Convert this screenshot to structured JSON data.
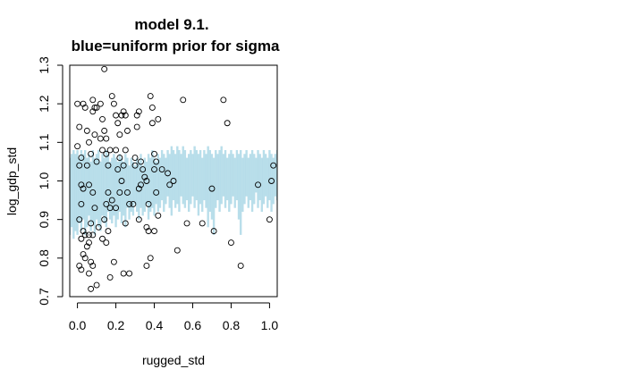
{
  "chart_data": {
    "type": "scatter",
    "title": "model 9.1.",
    "subtitle": "blue=uniform prior for sigma",
    "xlabel": "rugged_std",
    "ylabel": "log_gdp_std",
    "xlim": [
      -0.04,
      1.04
    ],
    "ylim": [
      0.7,
      1.3
    ],
    "xticks": [
      0.0,
      0.2,
      0.4,
      0.6,
      0.8,
      1.0
    ],
    "xtick_labels": [
      "0.0",
      "0.2",
      "0.4",
      "0.6",
      "0.8",
      "1.0"
    ],
    "yticks": [
      0.7,
      0.8,
      0.9,
      1.0,
      1.1,
      1.2,
      1.3
    ],
    "ytick_labels": [
      "0.7",
      "0.8",
      "0.9",
      "1.0",
      "1.1",
      "1.2",
      "1.3"
    ],
    "grid": false,
    "colors": {
      "trace": "#add8e6",
      "trace_light": "#d6ebf3",
      "points": "#000000"
    },
    "trace": {
      "description_free": true,
      "x": [
        -0.04,
        -0.03,
        -0.02,
        -0.01,
        0.0,
        0.01,
        0.02,
        0.03,
        0.04,
        0.05,
        0.06,
        0.07,
        0.08,
        0.09,
        0.1,
        0.11,
        0.12,
        0.13,
        0.14,
        0.15,
        0.16,
        0.17,
        0.18,
        0.19,
        0.2,
        0.21,
        0.22,
        0.23,
        0.24,
        0.25,
        0.26,
        0.27,
        0.28,
        0.29,
        0.3,
        0.31,
        0.32,
        0.33,
        0.34,
        0.35,
        0.36,
        0.37,
        0.38,
        0.39,
        0.4,
        0.41,
        0.42,
        0.43,
        0.44,
        0.45,
        0.46,
        0.47,
        0.48,
        0.49,
        0.5,
        0.51,
        0.52,
        0.53,
        0.54,
        0.55,
        0.56,
        0.57,
        0.58,
        0.59,
        0.6,
        0.61,
        0.62,
        0.63,
        0.64,
        0.65,
        0.66,
        0.67,
        0.68,
        0.69,
        0.7,
        0.71,
        0.72,
        0.73,
        0.74,
        0.75,
        0.76,
        0.77,
        0.78,
        0.79,
        0.8,
        0.81,
        0.82,
        0.83,
        0.84,
        0.85,
        0.86,
        0.87,
        0.88,
        0.89,
        0.9,
        0.91,
        0.92,
        0.93,
        0.94,
        0.95,
        0.96,
        0.97,
        0.98,
        0.99,
        1.0,
        1.01,
        1.02,
        1.03,
        1.04
      ],
      "upper": [
        1.06,
        1.07,
        1.08,
        1.07,
        1.08,
        1.06,
        1.08,
        1.07,
        1.08,
        1.06,
        1.07,
        1.05,
        1.08,
        1.06,
        1.07,
        1.08,
        1.05,
        1.07,
        1.06,
        1.08,
        1.07,
        1.05,
        1.06,
        1.07,
        1.06,
        1.05,
        1.07,
        1.06,
        1.05,
        1.07,
        1.06,
        1.04,
        1.06,
        1.05,
        1.04,
        1.06,
        1.05,
        1.07,
        1.04,
        1.06,
        1.05,
        1.07,
        1.06,
        1.08,
        1.06,
        1.05,
        1.07,
        1.06,
        1.08,
        1.07,
        1.06,
        1.08,
        1.07,
        1.09,
        1.08,
        1.07,
        1.09,
        1.08,
        1.07,
        1.09,
        1.08,
        1.06,
        1.07,
        1.08,
        1.07,
        1.09,
        1.08,
        1.07,
        1.08,
        1.06,
        1.08,
        1.07,
        1.09,
        1.08,
        1.07,
        1.06,
        1.08,
        1.07,
        1.08,
        1.09,
        1.07,
        1.08,
        1.06,
        1.07,
        1.08,
        1.07,
        1.06,
        1.08,
        1.07,
        1.08,
        1.06,
        1.07,
        1.08,
        1.06,
        1.07,
        1.08,
        1.07,
        1.06,
        1.08,
        1.07,
        1.06,
        1.08,
        1.07,
        1.06,
        1.08,
        1.07,
        1.06,
        1.07,
        1.08
      ],
      "lower": [
        0.86,
        0.88,
        0.85,
        0.87,
        0.86,
        0.89,
        0.87,
        0.9,
        0.86,
        0.88,
        0.91,
        0.87,
        0.89,
        0.86,
        0.9,
        0.88,
        0.87,
        0.91,
        0.89,
        0.88,
        0.92,
        0.9,
        0.89,
        0.91,
        0.88,
        0.9,
        0.92,
        0.89,
        0.91,
        0.88,
        0.93,
        0.9,
        0.92,
        0.91,
        0.94,
        0.92,
        0.9,
        0.93,
        0.91,
        0.92,
        0.94,
        0.9,
        0.92,
        0.93,
        0.91,
        0.94,
        0.92,
        0.93,
        0.95,
        0.92,
        0.94,
        0.96,
        0.93,
        0.91,
        0.95,
        0.93,
        0.94,
        0.92,
        0.96,
        0.94,
        0.93,
        0.95,
        0.92,
        0.94,
        0.96,
        0.93,
        0.95,
        0.91,
        0.94,
        0.92,
        0.95,
        0.93,
        0.88,
        0.92,
        0.9,
        0.86,
        0.93,
        0.95,
        0.92,
        0.94,
        0.96,
        0.93,
        0.95,
        0.92,
        0.94,
        0.96,
        0.93,
        0.95,
        0.9,
        0.86,
        0.92,
        0.94,
        0.96,
        0.93,
        0.95,
        0.92,
        0.94,
        0.97,
        0.93,
        0.95,
        0.92,
        0.94,
        0.96,
        0.93,
        0.95,
        0.92,
        0.94,
        0.96,
        0.95
      ]
    },
    "points": [
      {
        "x": 0.0,
        "y": 1.2
      },
      {
        "x": 0.01,
        "y": 1.14
      },
      {
        "x": 0.02,
        "y": 1.06
      },
      {
        "x": 0.0,
        "y": 1.09
      },
      {
        "x": 0.01,
        "y": 1.04
      },
      {
        "x": 0.02,
        "y": 0.99
      },
      {
        "x": 0.03,
        "y": 0.98
      },
      {
        "x": 0.02,
        "y": 0.94
      },
      {
        "x": 0.01,
        "y": 0.9
      },
      {
        "x": 0.03,
        "y": 0.87
      },
      {
        "x": 0.02,
        "y": 0.85
      },
      {
        "x": 0.04,
        "y": 0.86
      },
      {
        "x": 0.03,
        "y": 0.81
      },
      {
        "x": 0.01,
        "y": 0.78
      },
      {
        "x": 0.02,
        "y": 0.77
      },
      {
        "x": 0.04,
        "y": 0.8
      },
      {
        "x": 0.05,
        "y": 0.83
      },
      {
        "x": 0.06,
        "y": 0.86
      },
      {
        "x": 0.03,
        "y": 1.2
      },
      {
        "x": 0.04,
        "y": 1.19
      },
      {
        "x": 0.05,
        "y": 1.13
      },
      {
        "x": 0.06,
        "y": 1.1
      },
      {
        "x": 0.05,
        "y": 1.04
      },
      {
        "x": 0.07,
        "y": 1.07
      },
      {
        "x": 0.06,
        "y": 0.99
      },
      {
        "x": 0.08,
        "y": 1.21
      },
      {
        "x": 0.09,
        "y": 1.19
      },
      {
        "x": 0.08,
        "y": 1.18
      },
      {
        "x": 0.1,
        "y": 1.19
      },
      {
        "x": 0.09,
        "y": 1.12
      },
      {
        "x": 0.1,
        "y": 1.05
      },
      {
        "x": 0.08,
        "y": 0.97
      },
      {
        "x": 0.09,
        "y": 0.93
      },
      {
        "x": 0.07,
        "y": 0.89
      },
      {
        "x": 0.08,
        "y": 0.86
      },
      {
        "x": 0.06,
        "y": 0.84
      },
      {
        "x": 0.07,
        "y": 0.79
      },
      {
        "x": 0.08,
        "y": 0.78
      },
      {
        "x": 0.06,
        "y": 0.76
      },
      {
        "x": 0.07,
        "y": 0.72
      },
      {
        "x": 0.1,
        "y": 0.73
      },
      {
        "x": 0.11,
        "y": 0.88
      },
      {
        "x": 0.12,
        "y": 1.2
      },
      {
        "x": 0.13,
        "y": 1.16
      },
      {
        "x": 0.12,
        "y": 1.11
      },
      {
        "x": 0.14,
        "y": 1.13
      },
      {
        "x": 0.13,
        "y": 1.08
      },
      {
        "x": 0.15,
        "y": 1.07
      },
      {
        "x": 0.14,
        "y": 1.29
      },
      {
        "x": 0.15,
        "y": 1.11
      },
      {
        "x": 0.16,
        "y": 1.04
      },
      {
        "x": 0.17,
        "y": 1.08
      },
      {
        "x": 0.16,
        "y": 0.97
      },
      {
        "x": 0.17,
        "y": 0.93
      },
      {
        "x": 0.15,
        "y": 0.94
      },
      {
        "x": 0.14,
        "y": 0.9
      },
      {
        "x": 0.13,
        "y": 0.85
      },
      {
        "x": 0.15,
        "y": 0.84
      },
      {
        "x": 0.16,
        "y": 0.87
      },
      {
        "x": 0.17,
        "y": 0.75
      },
      {
        "x": 0.18,
        "y": 0.95
      },
      {
        "x": 0.18,
        "y": 1.22
      },
      {
        "x": 0.19,
        "y": 1.2
      },
      {
        "x": 0.2,
        "y": 1.17
      },
      {
        "x": 0.21,
        "y": 1.15
      },
      {
        "x": 0.22,
        "y": 1.12
      },
      {
        "x": 0.2,
        "y": 1.08
      },
      {
        "x": 0.22,
        "y": 1.06
      },
      {
        "x": 0.21,
        "y": 1.03
      },
      {
        "x": 0.23,
        "y": 1.0
      },
      {
        "x": 0.22,
        "y": 0.97
      },
      {
        "x": 0.2,
        "y": 0.93
      },
      {
        "x": 0.19,
        "y": 0.79
      },
      {
        "x": 0.23,
        "y": 1.17
      },
      {
        "x": 0.24,
        "y": 1.18
      },
      {
        "x": 0.25,
        "y": 1.17
      },
      {
        "x": 0.26,
        "y": 1.13
      },
      {
        "x": 0.24,
        "y": 1.04
      },
      {
        "x": 0.25,
        "y": 1.08
      },
      {
        "x": 0.26,
        "y": 0.97
      },
      {
        "x": 0.27,
        "y": 0.94
      },
      {
        "x": 0.25,
        "y": 0.89
      },
      {
        "x": 0.24,
        "y": 0.76
      },
      {
        "x": 0.27,
        "y": 0.76
      },
      {
        "x": 0.29,
        "y": 0.94
      },
      {
        "x": 0.3,
        "y": 1.06
      },
      {
        "x": 0.31,
        "y": 1.17
      },
      {
        "x": 0.32,
        "y": 1.18
      },
      {
        "x": 0.31,
        "y": 1.14
      },
      {
        "x": 0.3,
        "y": 1.04
      },
      {
        "x": 0.32,
        "y": 0.98
      },
      {
        "x": 0.33,
        "y": 1.05
      },
      {
        "x": 0.34,
        "y": 1.03
      },
      {
        "x": 0.33,
        "y": 0.99
      },
      {
        "x": 0.32,
        "y": 0.9
      },
      {
        "x": 0.35,
        "y": 1.01
      },
      {
        "x": 0.36,
        "y": 1.0
      },
      {
        "x": 0.37,
        "y": 0.94
      },
      {
        "x": 0.36,
        "y": 0.88
      },
      {
        "x": 0.37,
        "y": 0.87
      },
      {
        "x": 0.36,
        "y": 0.78
      },
      {
        "x": 0.38,
        "y": 0.8
      },
      {
        "x": 0.38,
        "y": 1.22
      },
      {
        "x": 0.39,
        "y": 1.19
      },
      {
        "x": 0.39,
        "y": 1.15
      },
      {
        "x": 0.4,
        "y": 1.07
      },
      {
        "x": 0.41,
        "y": 1.05
      },
      {
        "x": 0.4,
        "y": 1.03
      },
      {
        "x": 0.41,
        "y": 0.97
      },
      {
        "x": 0.42,
        "y": 1.16
      },
      {
        "x": 0.4,
        "y": 0.87
      },
      {
        "x": 0.42,
        "y": 0.91
      },
      {
        "x": 0.44,
        "y": 1.03
      },
      {
        "x": 0.47,
        "y": 1.02
      },
      {
        "x": 0.48,
        "y": 0.99
      },
      {
        "x": 0.5,
        "y": 1.0
      },
      {
        "x": 0.52,
        "y": 0.82
      },
      {
        "x": 0.55,
        "y": 1.21
      },
      {
        "x": 0.57,
        "y": 0.89
      },
      {
        "x": 0.65,
        "y": 0.89
      },
      {
        "x": 0.7,
        "y": 0.98
      },
      {
        "x": 0.71,
        "y": 0.87
      },
      {
        "x": 0.76,
        "y": 1.21
      },
      {
        "x": 0.78,
        "y": 1.15
      },
      {
        "x": 0.8,
        "y": 0.84
      },
      {
        "x": 0.85,
        "y": 0.78
      },
      {
        "x": 0.94,
        "y": 0.99
      },
      {
        "x": 1.0,
        "y": 0.9
      },
      {
        "x": 1.01,
        "y": 1.0
      },
      {
        "x": 1.02,
        "y": 1.04
      }
    ]
  }
}
